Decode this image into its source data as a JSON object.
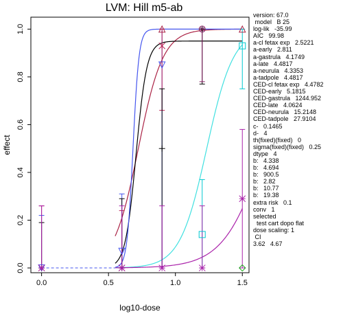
{
  "chart_data": {
    "type": "scatter",
    "title": "LVM: Hill m5-ab",
    "xlabel": "log10-dose",
    "ylabel": "effect",
    "xlim": [
      -0.08,
      1.55
    ],
    "ylim": [
      -0.02,
      1.05
    ],
    "x_ticks": [
      0.0,
      0.5,
      1.0,
      1.5
    ],
    "x_tick_labels": [
      "0.0",
      "0.5",
      "1.0",
      "1.5"
    ],
    "y_ticks": [
      0.0,
      0.2,
      0.4,
      0.6,
      0.8,
      1.0
    ],
    "y_tick_labels": [
      "0.0",
      "0.2",
      "0.4",
      "0.6",
      "0.8",
      "1.0"
    ],
    "grid": false,
    "legend_position": "right",
    "curves": [
      {
        "color": "#aa2244",
        "a": 0.0,
        "b": 4.694,
        "c": 1.0,
        "d": 0.723
      },
      {
        "color": "#000000",
        "a": 0.0,
        "b": 10.77,
        "c": 0.95,
        "d": 0.706
      },
      {
        "color": "#4455ee",
        "a": 0.0,
        "b": 19.38,
        "c": 1.0,
        "d": 0.683
      },
      {
        "color": "#40e0e0",
        "a": 0.0,
        "b": 4.338,
        "c": 1.0,
        "d": 1.234
      },
      {
        "color": "#aa22aa",
        "a": 0.0,
        "b": 2.82,
        "c": 1.0,
        "d": 1.67
      },
      {
        "color": "#11aa11",
        "a": 0.0,
        "b": 900.5,
        "c": 1.0,
        "d": 1.8
      }
    ],
    "series": [
      {
        "color": "#4455ee",
        "marker": "triangle-down",
        "points": [
          {
            "x": 0.0,
            "y": 0.0,
            "lo": 0.0,
            "hi": 0.22
          },
          {
            "x": 0.6,
            "y": 0.07,
            "lo": 0.0,
            "hi": 0.31
          },
          {
            "x": 0.9,
            "y": 0.85,
            "lo": 0.0,
            "hi": 1.0
          }
        ]
      },
      {
        "color": "#bb2255",
        "marker": "asterisk",
        "points": [
          {
            "x": 0.0,
            "y": 0.0,
            "lo": 0.0,
            "hi": 0.26
          },
          {
            "x": 0.6,
            "y": 0.0,
            "lo": 0.0,
            "hi": 0.24
          },
          {
            "x": 0.9,
            "y": 0.93,
            "lo": 0.66,
            "hi": 1.0
          }
        ]
      },
      {
        "color": "#000000",
        "marker": "plus",
        "points": [
          {
            "x": 0.0,
            "y": 0.0,
            "lo": 0.0,
            "hi": 0.19
          },
          {
            "x": 0.6,
            "y": 0.0,
            "lo": 0.0,
            "hi": 0.29
          },
          {
            "x": 0.9,
            "y": 0.5,
            "lo": 0.0,
            "hi": 0.75
          },
          {
            "x": 1.2,
            "y": 1.0,
            "lo": 0.77,
            "hi": 1.0
          }
        ]
      },
      {
        "color": "#aa2244",
        "marker": "triangle-up",
        "points": [
          {
            "x": 0.9,
            "y": 1.0,
            "lo": 1.0,
            "hi": 1.0
          },
          {
            "x": 1.5,
            "y": 1.0,
            "lo": 1.0,
            "hi": 1.0
          }
        ]
      },
      {
        "color": "#882266",
        "marker": "circle-x",
        "points": [
          {
            "x": 1.2,
            "y": 1.0,
            "lo": 0.78,
            "hi": 1.0
          }
        ]
      },
      {
        "color": "#00c8d0",
        "marker": "square",
        "points": [
          {
            "x": 1.2,
            "y": 0.14,
            "lo": 0.0,
            "hi": 0.37
          },
          {
            "x": 1.5,
            "y": 0.93,
            "lo": 0.75,
            "hi": 1.0
          }
        ]
      },
      {
        "color": "#aa22aa",
        "marker": "star",
        "points": [
          {
            "x": 0.0,
            "y": 0.0,
            "lo": 0.0,
            "hi": 0.26
          },
          {
            "x": 0.6,
            "y": 0.0,
            "lo": 0.0,
            "hi": 0.26
          },
          {
            "x": 0.9,
            "y": 0.0,
            "lo": 0.0,
            "hi": 0.26
          },
          {
            "x": 1.2,
            "y": 0.0,
            "lo": 0.0,
            "hi": 0.26
          },
          {
            "x": 1.5,
            "y": 0.29,
            "lo": 0.0,
            "hi": 0.58
          }
        ]
      },
      {
        "color": "#11aa11",
        "marker": "diamond",
        "points": [
          {
            "x": 1.5,
            "y": 0.0,
            "lo": 0.0,
            "hi": 0.0
          }
        ]
      }
    ],
    "annotations": [
      "version: 67.0",
      " model   B 25",
      "log-lik   -35.99",
      "AIC   99.98",
      "a-cl fetax exp   2.5221",
      "a-early   2.811",
      "a-gastrula   4.1749",
      "a-late   4.4817",
      "a-neurula   4.3353",
      "a-tadpole   4.4817",
      "CED-cl fetax exp   4.4782",
      "CED-early   5.1815",
      "CED-gastrula   1244.952",
      "CED-late   4.0624",
      "CED-neurula   15.2148",
      "CED-tadpole   27.9104",
      "c-   0.1465",
      "d-   4",
      "th(fixed)(fixed)   0",
      "sigma(fixed)(fixed)   0.25",
      "dtype   4",
      "b:   4.338",
      "b:   4.694",
      "b:   900.5",
      "b:   2.82",
      "b:   10.77",
      "b:   19.38",
      "extra risk   0.1",
      "conv   1",
      "selected",
      "  test cart dopo flat",
      "dose scaling: 1",
      " CI",
      "3.62   4.67"
    ]
  }
}
